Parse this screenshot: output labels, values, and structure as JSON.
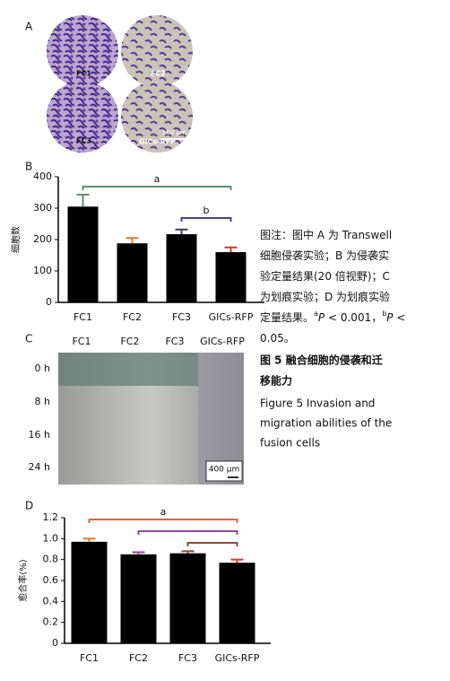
{
  "panel_labels": [
    "A",
    "B",
    "C",
    "D"
  ],
  "panel_a": {
    "labels": [
      "FC1",
      "FC2",
      "FC3",
      "GICs-RFP"
    ],
    "scale_bar": "100 μm"
  },
  "panel_c": {
    "columns": [
      "FC1",
      "FC2",
      "FC3",
      "GICs-RFP"
    ],
    "rows": [
      "0 h",
      "8 h",
      "16 h",
      "24 h"
    ],
    "scale_bar": "400 μm"
  },
  "chart_data": [
    {
      "type": "bar",
      "ylabel": "细胞数",
      "categories": [
        "FC1",
        "FC2",
        "FC3",
        "GICs-RFP"
      ],
      "values": [
        305,
        188,
        217,
        160
      ],
      "errors": [
        38,
        17,
        15,
        15
      ],
      "error_colors": [
        "#5b8f6f",
        "#e8742c",
        "#3c3a78",
        "#d8352a"
      ],
      "color": "#000000",
      "ylim": [
        0,
        400
      ],
      "yticks": [
        0,
        100,
        200,
        300,
        400
      ],
      "brackets": [
        {
          "label": "a",
          "from": "FC1",
          "to": "GICs-RFP",
          "color": "#5b8f6f"
        },
        {
          "label": "b",
          "from": "FC3",
          "to": "GICs-RFP",
          "color": "#4b3f8f"
        }
      ]
    },
    {
      "type": "bar",
      "ylabel": "愈合率(%)",
      "categories": [
        "FC1",
        "FC2",
        "FC3",
        "GICs-RFP"
      ],
      "values": [
        0.97,
        0.85,
        0.86,
        0.77
      ],
      "errors": [
        0.03,
        0.02,
        0.02,
        0.03
      ],
      "error_colors": [
        "#e8742c",
        "#a040a8",
        "#8a4a3a",
        "#d8352a"
      ],
      "color": "#000000",
      "ylim": [
        0,
        1.2
      ],
      "yticks": [
        0,
        0.2,
        0.4,
        0.6,
        0.8,
        {
          "value": 1.0,
          "label": "1.0"
        },
        1.2
      ],
      "brackets": [
        {
          "label": "a",
          "from": "FC1",
          "to": "GICs-RFP",
          "color": "#e8603c"
        },
        {
          "from": "FC2",
          "to": "GICs-RFP",
          "color": "#a040a8"
        },
        {
          "from": "FC3",
          "to": "GICs-RFP",
          "color": "#8a4a3a"
        }
      ]
    }
  ],
  "caption": {
    "lines": [
      [
        {
          "text": "图注：图中 A 为 Transwell"
        }
      ],
      [
        {
          "text": "细胞侵袭实验；B 为侵袭实"
        }
      ],
      [
        {
          "text": "验定量结果(20 倍视野)；C"
        }
      ],
      [
        {
          "text": "为划痕实验；D 为划痕实验"
        }
      ],
      [
        {
          "text": "定量结果。"
        },
        {
          "text": "a",
          "sup": true
        },
        {
          "text": "P",
          "italic": true
        },
        {
          "text": " < 0.001，"
        },
        {
          "text": "b",
          "sup": true
        },
        {
          "text": "P",
          "italic": true
        },
        {
          "text": " <"
        }
      ],
      [
        {
          "text": "0.05。"
        }
      ]
    ],
    "title": [
      "图 5   融合细胞的侵袭和迁",
      "移能力"
    ],
    "english": [
      "Figure 5   Invasion and",
      "migration abilities of the",
      "fusion cells"
    ]
  }
}
